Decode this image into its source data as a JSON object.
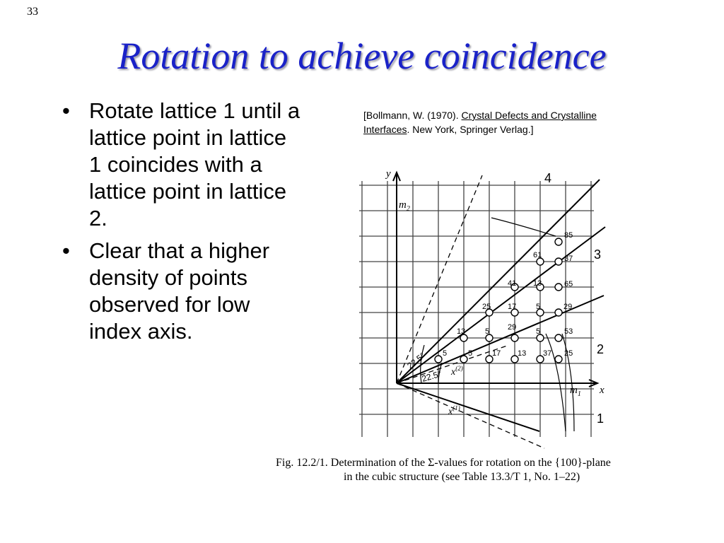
{
  "slide": {
    "number": "33",
    "title": "Rotation to achieve coincidence"
  },
  "bullets": [
    "Rotate lattice 1 until a lattice point in lattice 1 coincides with a lattice point in lattice 2.",
    "Clear that a higher density of points observed for low index axis."
  ],
  "citation": {
    "prefix": "[Bollmann, W. (1970). ",
    "title_part1": "Crystal Defects and Crystalline",
    "title_part2": "Interfaces",
    "suffix": ". New York, Springer Verlag.]"
  },
  "figure": {
    "axis_y": "y",
    "axis_x": "x",
    "m2": "m",
    "m2_sub": "2",
    "m1": "m",
    "m1_sub": "1",
    "x1": "x",
    "x1_sup": "(1)",
    "x2": "x",
    "x2_sup": "(2)",
    "angle_top": "22.5°",
    "angle_bottom": "22.5°",
    "line_labels": [
      "4",
      "3",
      "2",
      "1"
    ],
    "sigma_values": [
      "85",
      "61",
      "37",
      "41",
      "13",
      "65",
      "25",
      "17",
      "5",
      "29",
      "13",
      "5",
      "29",
      "5",
      "53",
      "5",
      "5",
      "17",
      "13",
      "37",
      "25"
    ]
  },
  "caption": {
    "line1": "Fig. 12.2/1. Determination of the Σ-values for rotation on the {100}-plane",
    "line2": "in the cubic structure (see Table 13.3/T 1, No. 1–22)"
  }
}
